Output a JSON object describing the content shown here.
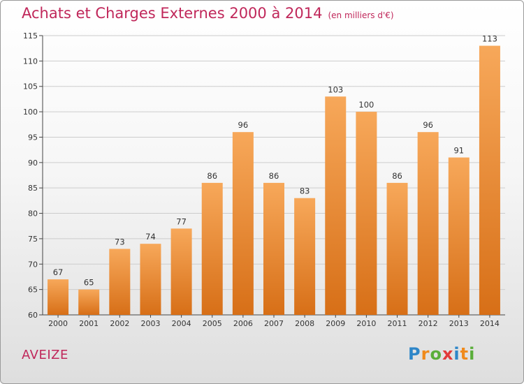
{
  "header": {
    "title": "Achats et Charges Externes 2000 à 2014",
    "unit": "(en milliers d'€)"
  },
  "footer": {
    "commune": "AVEIZE",
    "logo": "Proxiti"
  },
  "colors": {
    "title": "#c0275a",
    "bar_light": "#f7a85a",
    "bar_dark": "#d76f17",
    "grid": "#cccccc"
  },
  "chart_data": {
    "type": "bar",
    "title": "Achats et Charges Externes 2000 à 2014",
    "subtitle": "(en milliers d'€)",
    "xlabel": "",
    "ylabel": "",
    "categories": [
      "2000",
      "2001",
      "2002",
      "2003",
      "2004",
      "2005",
      "2006",
      "2007",
      "2008",
      "2009",
      "2010",
      "2011",
      "2012",
      "2013",
      "2014"
    ],
    "values": [
      67,
      65,
      73,
      74,
      77,
      86,
      96,
      86,
      83,
      103,
      100,
      86,
      96,
      91,
      113
    ],
    "ylim": [
      60,
      115
    ],
    "yticks": [
      60,
      65,
      70,
      75,
      80,
      85,
      90,
      95,
      100,
      105,
      110,
      115
    ],
    "grid": true,
    "legend": "none"
  }
}
